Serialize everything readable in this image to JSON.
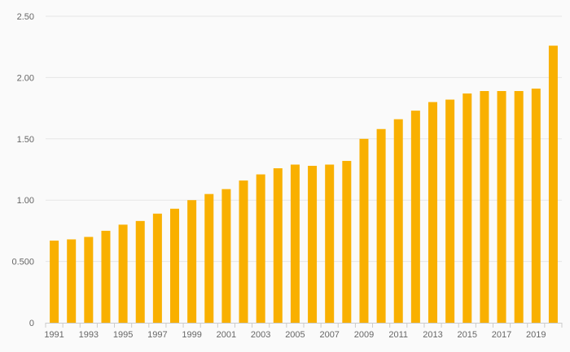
{
  "chart_data": {
    "type": "bar",
    "title": "",
    "xlabel": "",
    "ylabel": "",
    "ylim": [
      0,
      2.5
    ],
    "grid": true,
    "bar_color": "#f9b000",
    "yticks": [
      {
        "value": 0,
        "label": "0"
      },
      {
        "value": 0.5,
        "label": "0.500"
      },
      {
        "value": 1.0,
        "label": "1.00"
      },
      {
        "value": 1.5,
        "label": "1.50"
      },
      {
        "value": 2.0,
        "label": "2.00"
      },
      {
        "value": 2.5,
        "label": "2.50"
      }
    ],
    "categories": [
      "1991",
      "1992",
      "1993",
      "1994",
      "1995",
      "1996",
      "1997",
      "1998",
      "1999",
      "2000",
      "2001",
      "2002",
      "2003",
      "2004",
      "2005",
      "2006",
      "2007",
      "2008",
      "2009",
      "2010",
      "2011",
      "2012",
      "2013",
      "2014",
      "2015",
      "2016",
      "2017",
      "2018",
      "2019",
      "2020"
    ],
    "xtick_labels": [
      "1991",
      "1993",
      "1995",
      "1997",
      "1999",
      "2001",
      "2003",
      "2005",
      "2007",
      "2009",
      "2011",
      "2013",
      "2015",
      "2017",
      "2019"
    ],
    "values": [
      0.67,
      0.68,
      0.7,
      0.75,
      0.8,
      0.83,
      0.89,
      0.93,
      1.0,
      1.05,
      1.09,
      1.16,
      1.21,
      1.26,
      1.29,
      1.28,
      1.29,
      1.32,
      1.5,
      1.58,
      1.66,
      1.73,
      1.8,
      1.82,
      1.87,
      1.89,
      1.89,
      1.89,
      1.91,
      2.26
    ]
  }
}
